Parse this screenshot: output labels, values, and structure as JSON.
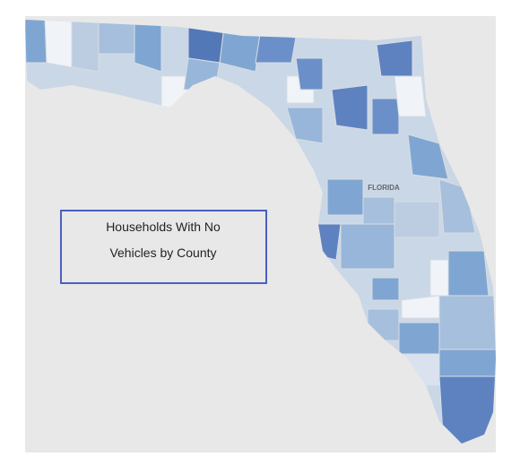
{
  "map": {
    "state_label": "FLORIDA",
    "legend_box": {
      "lines": [
        "Households With No",
        "Vehicles by County"
      ]
    }
  }
}
